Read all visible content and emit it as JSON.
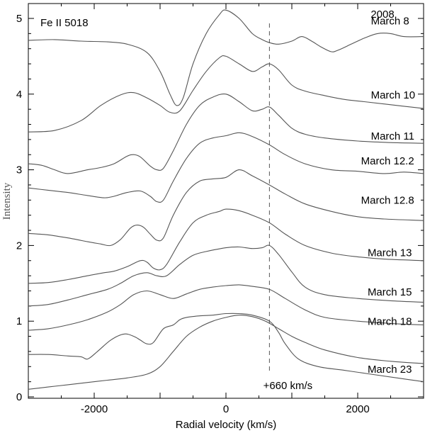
{
  "chart_data": {
    "type": "line",
    "panel_label": "Fe II 5018",
    "year_label": "2008",
    "xlabel": "Radial velocity (km/s)",
    "ylabel": "Intensity",
    "xlim": [
      -3000,
      3000
    ],
    "ylim": [
      0,
      5.3
    ],
    "xticks": [
      -2000,
      0,
      2000
    ],
    "yticks": [
      0,
      1,
      2,
      3,
      4,
      5
    ],
    "xtick_labels": [
      "-2000",
      "0",
      "2000"
    ],
    "ytick_labels": [
      "0",
      "1",
      "2",
      "3",
      "4",
      "5"
    ],
    "vline": {
      "x": 660,
      "label": "+660 km/s",
      "style": "dashed"
    },
    "line_color": "#555555",
    "series": [
      {
        "name": "March 8",
        "label_anchor": [
          2200,
          4.92
        ],
        "points": [
          [
            -3000,
            4.71
          ],
          [
            -2600,
            4.72
          ],
          [
            -2200,
            4.7
          ],
          [
            -1800,
            4.69
          ],
          [
            -1500,
            4.66
          ],
          [
            -1200,
            4.55
          ],
          [
            -1000,
            4.3
          ],
          [
            -850,
            4.0
          ],
          [
            -750,
            3.85
          ],
          [
            -650,
            3.95
          ],
          [
            -500,
            4.4
          ],
          [
            -300,
            4.8
          ],
          [
            -100,
            5.05
          ],
          [
            0,
            5.11
          ],
          [
            200,
            5.0
          ],
          [
            400,
            4.8
          ],
          [
            550,
            4.72
          ],
          [
            660,
            4.68
          ],
          [
            800,
            4.66
          ],
          [
            1000,
            4.7
          ],
          [
            1150,
            4.76
          ],
          [
            1300,
            4.7
          ],
          [
            1450,
            4.62
          ],
          [
            1600,
            4.56
          ],
          [
            1700,
            4.58
          ],
          [
            1900,
            4.66
          ],
          [
            2100,
            4.74
          ],
          [
            2300,
            4.8
          ],
          [
            2500,
            4.8
          ],
          [
            2700,
            4.76
          ],
          [
            3000,
            4.76
          ]
        ]
      },
      {
        "name": "March 10",
        "label_anchor": [
          2200,
          3.94
        ],
        "points": [
          [
            -3000,
            3.5
          ],
          [
            -2600,
            3.52
          ],
          [
            -2200,
            3.65
          ],
          [
            -1900,
            3.85
          ],
          [
            -1600,
            3.99
          ],
          [
            -1400,
            4.02
          ],
          [
            -1200,
            3.95
          ],
          [
            -1000,
            3.85
          ],
          [
            -850,
            3.76
          ],
          [
            -700,
            3.78
          ],
          [
            -500,
            4.05
          ],
          [
            -300,
            4.3
          ],
          [
            -100,
            4.48
          ],
          [
            0,
            4.5
          ],
          [
            200,
            4.4
          ],
          [
            400,
            4.3
          ],
          [
            550,
            4.36
          ],
          [
            660,
            4.4
          ],
          [
            800,
            4.32
          ],
          [
            1000,
            4.12
          ],
          [
            1200,
            4.04
          ],
          [
            1500,
            3.98
          ],
          [
            1800,
            3.93
          ],
          [
            2100,
            3.9
          ],
          [
            2400,
            3.87
          ],
          [
            2700,
            3.84
          ],
          [
            3000,
            3.81
          ]
        ]
      },
      {
        "name": "March 11",
        "label_anchor": [
          2200,
          3.4
        ],
        "points": [
          [
            -3000,
            3.08
          ],
          [
            -2800,
            3.06
          ],
          [
            -2600,
            3.0
          ],
          [
            -2400,
            2.95
          ],
          [
            -2100,
            3.0
          ],
          [
            -1900,
            3.03
          ],
          [
            -1700,
            3.08
          ],
          [
            -1500,
            3.18
          ],
          [
            -1400,
            3.2
          ],
          [
            -1300,
            3.17
          ],
          [
            -1150,
            3.05
          ],
          [
            -1050,
            3.0
          ],
          [
            -950,
            3.02
          ],
          [
            -800,
            3.25
          ],
          [
            -600,
            3.6
          ],
          [
            -400,
            3.85
          ],
          [
            -200,
            3.96
          ],
          [
            0,
            4.0
          ],
          [
            200,
            3.9
          ],
          [
            400,
            3.78
          ],
          [
            550,
            3.8
          ],
          [
            660,
            3.83
          ],
          [
            800,
            3.72
          ],
          [
            1000,
            3.55
          ],
          [
            1200,
            3.47
          ],
          [
            1500,
            3.42
          ],
          [
            2000,
            3.38
          ],
          [
            2500,
            3.36
          ],
          [
            3000,
            3.35
          ]
        ]
      },
      {
        "name": "March 12.2",
        "label_anchor": [
          2050,
          3.07
        ],
        "points": [
          [
            -3000,
            2.76
          ],
          [
            -2700,
            2.73
          ],
          [
            -2400,
            2.7
          ],
          [
            -2100,
            2.66
          ],
          [
            -1850,
            2.63
          ],
          [
            -1700,
            2.65
          ],
          [
            -1500,
            2.7
          ],
          [
            -1300,
            2.72
          ],
          [
            -1150,
            2.65
          ],
          [
            -1050,
            2.58
          ],
          [
            -950,
            2.6
          ],
          [
            -800,
            2.85
          ],
          [
            -600,
            3.15
          ],
          [
            -400,
            3.35
          ],
          [
            -200,
            3.42
          ],
          [
            0,
            3.45
          ],
          [
            200,
            3.49
          ],
          [
            400,
            3.44
          ],
          [
            660,
            3.33
          ],
          [
            900,
            3.2
          ],
          [
            1200,
            3.08
          ],
          [
            1600,
            3.0
          ],
          [
            2000,
            2.98
          ],
          [
            2400,
            2.95
          ],
          [
            2700,
            2.97
          ],
          [
            3000,
            2.95
          ]
        ]
      },
      {
        "name": "March 12.8",
        "label_anchor": [
          2050,
          2.55
        ],
        "points": [
          [
            -3000,
            2.16
          ],
          [
            -2700,
            2.14
          ],
          [
            -2400,
            2.1
          ],
          [
            -2100,
            2.05
          ],
          [
            -1900,
            2.02
          ],
          [
            -1750,
            2.0
          ],
          [
            -1600,
            2.08
          ],
          [
            -1450,
            2.23
          ],
          [
            -1350,
            2.27
          ],
          [
            -1250,
            2.24
          ],
          [
            -1150,
            2.15
          ],
          [
            -1050,
            2.07
          ],
          [
            -950,
            2.1
          ],
          [
            -800,
            2.4
          ],
          [
            -600,
            2.7
          ],
          [
            -400,
            2.85
          ],
          [
            -200,
            2.88
          ],
          [
            0,
            2.9
          ],
          [
            200,
            3.0
          ],
          [
            400,
            2.92
          ],
          [
            660,
            2.8
          ],
          [
            900,
            2.68
          ],
          [
            1200,
            2.55
          ],
          [
            1600,
            2.45
          ],
          [
            2000,
            2.38
          ],
          [
            2400,
            2.35
          ],
          [
            3000,
            2.33
          ]
        ]
      },
      {
        "name": "March 13",
        "label_anchor": [
          2150,
          1.86
        ],
        "points": [
          [
            -3000,
            1.5
          ],
          [
            -2700,
            1.51
          ],
          [
            -2400,
            1.55
          ],
          [
            -2100,
            1.6
          ],
          [
            -1850,
            1.64
          ],
          [
            -1700,
            1.66
          ],
          [
            -1500,
            1.72
          ],
          [
            -1300,
            1.8
          ],
          [
            -1200,
            1.78
          ],
          [
            -1100,
            1.7
          ],
          [
            -1000,
            1.68
          ],
          [
            -900,
            1.75
          ],
          [
            -700,
            2.05
          ],
          [
            -500,
            2.3
          ],
          [
            -300,
            2.4
          ],
          [
            -100,
            2.45
          ],
          [
            0,
            2.48
          ],
          [
            200,
            2.46
          ],
          [
            400,
            2.4
          ],
          [
            660,
            2.3
          ],
          [
            900,
            2.15
          ],
          [
            1200,
            2.0
          ],
          [
            1600,
            1.9
          ],
          [
            2000,
            1.85
          ],
          [
            2400,
            1.82
          ],
          [
            3000,
            1.8
          ]
        ]
      },
      {
        "name": "March 15",
        "label_anchor": [
          2150,
          1.34
        ],
        "points": [
          [
            -3000,
            1.2
          ],
          [
            -2700,
            1.22
          ],
          [
            -2400,
            1.28
          ],
          [
            -2100,
            1.35
          ],
          [
            -1800,
            1.42
          ],
          [
            -1600,
            1.5
          ],
          [
            -1400,
            1.6
          ],
          [
            -1200,
            1.64
          ],
          [
            -1050,
            1.6
          ],
          [
            -900,
            1.6
          ],
          [
            -700,
            1.75
          ],
          [
            -500,
            1.87
          ],
          [
            -300,
            1.92
          ],
          [
            0,
            1.97
          ],
          [
            200,
            1.98
          ],
          [
            400,
            1.96
          ],
          [
            550,
            1.97
          ],
          [
            660,
            2.0
          ],
          [
            800,
            1.88
          ],
          [
            1000,
            1.65
          ],
          [
            1200,
            1.45
          ],
          [
            1500,
            1.35
          ],
          [
            2000,
            1.3
          ],
          [
            2500,
            1.27
          ],
          [
            3000,
            1.25
          ]
        ]
      },
      {
        "name": "March 18",
        "label_anchor": [
          2150,
          0.95
        ],
        "points": [
          [
            -3000,
            0.88
          ],
          [
            -2700,
            0.9
          ],
          [
            -2400,
            0.95
          ],
          [
            -2100,
            1.02
          ],
          [
            -1800,
            1.12
          ],
          [
            -1600,
            1.22
          ],
          [
            -1400,
            1.35
          ],
          [
            -1200,
            1.4
          ],
          [
            -1000,
            1.35
          ],
          [
            -800,
            1.3
          ],
          [
            -600,
            1.36
          ],
          [
            -400,
            1.42
          ],
          [
            -200,
            1.45
          ],
          [
            0,
            1.47
          ],
          [
            200,
            1.48
          ],
          [
            400,
            1.46
          ],
          [
            660,
            1.42
          ],
          [
            900,
            1.3
          ],
          [
            1200,
            1.15
          ],
          [
            1500,
            1.05
          ],
          [
            2000,
            1.0
          ],
          [
            2500,
            0.97
          ],
          [
            3000,
            0.95
          ]
        ]
      },
      {
        "name": "March 23",
        "label_anchor": [
          2150,
          0.32
        ],
        "points": [
          [
            -3000,
            0.56
          ],
          [
            -2700,
            0.56
          ],
          [
            -2400,
            0.54
          ],
          [
            -2200,
            0.53
          ],
          [
            -2100,
            0.5
          ],
          [
            -1950,
            0.6
          ],
          [
            -1750,
            0.75
          ],
          [
            -1550,
            0.83
          ],
          [
            -1400,
            0.8
          ],
          [
            -1300,
            0.75
          ],
          [
            -1200,
            0.7
          ],
          [
            -1100,
            0.72
          ],
          [
            -950,
            0.9
          ],
          [
            -800,
            0.95
          ],
          [
            -700,
            1.02
          ],
          [
            -600,
            1.05
          ],
          [
            -400,
            1.07
          ],
          [
            -200,
            1.08
          ],
          [
            0,
            1.1
          ],
          [
            200,
            1.1
          ],
          [
            400,
            1.08
          ],
          [
            660,
            1.0
          ],
          [
            800,
            0.85
          ],
          [
            900,
            0.7
          ],
          [
            1100,
            0.5
          ],
          [
            1400,
            0.4
          ],
          [
            1800,
            0.35
          ],
          [
            2200,
            0.3
          ],
          [
            2600,
            0.25
          ],
          [
            3000,
            0.2
          ]
        ]
      },
      {
        "name": "",
        "label_anchor": null,
        "points": [
          [
            -3000,
            0.1
          ],
          [
            -2700,
            0.13
          ],
          [
            -2400,
            0.16
          ],
          [
            -2100,
            0.19
          ],
          [
            -1800,
            0.22
          ],
          [
            -1500,
            0.25
          ],
          [
            -1200,
            0.3
          ],
          [
            -1000,
            0.4
          ],
          [
            -800,
            0.6
          ],
          [
            -600,
            0.8
          ],
          [
            -400,
            0.92
          ],
          [
            -200,
            1.0
          ],
          [
            0,
            1.05
          ],
          [
            200,
            1.08
          ],
          [
            400,
            1.06
          ],
          [
            600,
            1.0
          ],
          [
            800,
            0.9
          ],
          [
            1000,
            0.8
          ],
          [
            1200,
            0.72
          ],
          [
            1500,
            0.62
          ],
          [
            2000,
            0.52
          ],
          [
            2500,
            0.47
          ],
          [
            3000,
            0.44
          ]
        ]
      }
    ]
  }
}
